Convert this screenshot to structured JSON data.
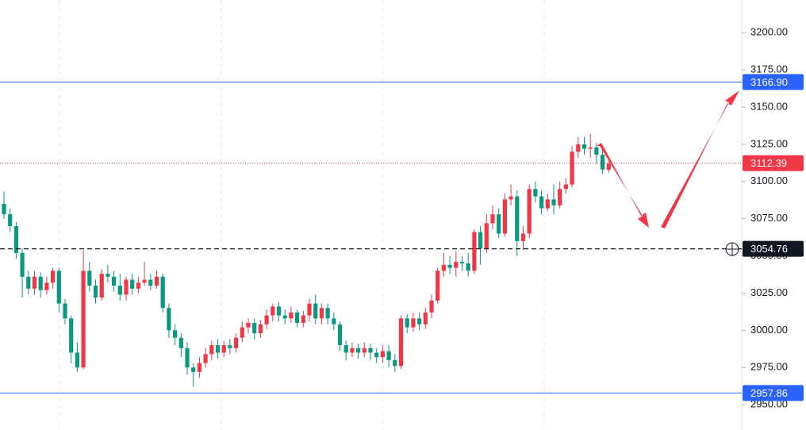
{
  "chart_data": {
    "type": "candlestick",
    "open": [
      3085,
      3078,
      3070,
      3052,
      3036,
      3028,
      3036,
      3027,
      3032,
      3040,
      3018,
      3008,
      2985,
      2975,
      3040,
      3030,
      3022,
      3038,
      3036,
      3030,
      3024,
      3034,
      3028,
      3032,
      3034,
      3030,
      3036,
      3015,
      3000,
      2995,
      2988,
      2975,
      2972,
      2978,
      2984,
      2990,
      2985,
      2990,
      2988,
      2995,
      3002,
      3005,
      2998,
      3004,
      3010,
      3016,
      3010,
      3008,
      3012,
      3005,
      3010,
      3018,
      3008,
      3015,
      3008,
      3004,
      2990,
      2985,
      2988,
      2985,
      2988,
      2985,
      2982,
      2986,
      2980,
      2976,
      3008,
      3002,
      3008,
      3004,
      3012,
      3020,
      3040,
      3044,
      3042,
      3046,
      3045,
      3040,
      3066,
      3055,
      3072,
      3078,
      3065,
      3088,
      3090,
      3060,
      3065,
      3095,
      3090,
      3082,
      3088,
      3084,
      3095,
      3098,
      3120,
      3125,
      3122,
      3123,
      3118,
      3108
    ],
    "high": [
      3093,
      3082,
      3073,
      3055,
      3040,
      3040,
      3039,
      3036,
      3042,
      3042,
      3021,
      3010,
      2992,
      3054,
      3046,
      3034,
      3041,
      3044,
      3040,
      3038,
      3036,
      3038,
      3036,
      3046,
      3038,
      3040,
      3038,
      3018,
      3004,
      2998,
      2992,
      2978,
      2982,
      2988,
      2993,
      2994,
      2993,
      2994,
      2998,
      3006,
      3008,
      3008,
      3007,
      3014,
      3018,
      3019,
      3014,
      3016,
      3014,
      3013,
      3021,
      3024,
      3018,
      3018,
      3012,
      3006,
      2993,
      2992,
      2991,
      2992,
      2991,
      2988,
      2990,
      2990,
      2984,
      3010,
      3011,
      3012,
      3012,
      3015,
      3024,
      3042,
      3052,
      3050,
      3053,
      3050,
      3052,
      3068,
      3070,
      3078,
      3084,
      3082,
      3092,
      3098,
      3094,
      3070,
      3098,
      3100,
      3094,
      3092,
      3098,
      3100,
      3102,
      3124,
      3130,
      3130,
      3132,
      3126,
      3122,
      3114
    ],
    "low": [
      3075,
      3066,
      3048,
      3022,
      3024,
      3024,
      3022,
      3024,
      3028,
      3012,
      3004,
      2978,
      2972,
      2974,
      3026,
      3018,
      3020,
      3032,
      3026,
      3020,
      3020,
      3024,
      3025,
      3030,
      3027,
      3028,
      3012,
      2995,
      2990,
      2982,
      2970,
      2962,
      2968,
      2975,
      2980,
      2981,
      2982,
      2984,
      2985,
      2992,
      2998,
      2994,
      2995,
      3001,
      3006,
      3006,
      3004,
      3005,
      3002,
      3002,
      3006,
      3004,
      3004,
      3004,
      3000,
      2986,
      2980,
      2982,
      2981,
      2982,
      2980,
      2978,
      2978,
      2975,
      2972,
      2974,
      2998,
      2999,
      3000,
      3001,
      3008,
      3018,
      3036,
      3038,
      3036,
      3040,
      3036,
      3038,
      3044,
      3052,
      3068,
      3062,
      3063,
      3084,
      3050,
      3054,
      3062,
      3086,
      3078,
      3080,
      3078,
      3082,
      3092,
      3096,
      3116,
      3118,
      3116,
      3112,
      3105,
      3106
    ],
    "close": [
      3078,
      3070,
      3052,
      3036,
      3028,
      3036,
      3027,
      3032,
      3040,
      3018,
      3008,
      2985,
      2975,
      3040,
      3030,
      3022,
      3038,
      3036,
      3030,
      3024,
      3034,
      3028,
      3032,
      3034,
      3030,
      3036,
      3015,
      3000,
      2995,
      2988,
      2975,
      2972,
      2978,
      2984,
      2990,
      2985,
      2990,
      2988,
      2995,
      3002,
      3005,
      2998,
      3004,
      3010,
      3016,
      3010,
      3008,
      3012,
      3005,
      3010,
      3018,
      3008,
      3015,
      3008,
      3004,
      2990,
      2985,
      2988,
      2985,
      2988,
      2985,
      2982,
      2986,
      2980,
      2976,
      3008,
      3002,
      3008,
      3004,
      3012,
      3020,
      3040,
      3044,
      3042,
      3046,
      3045,
      3040,
      3066,
      3055,
      3072,
      3078,
      3065,
      3088,
      3090,
      3060,
      3065,
      3095,
      3090,
      3082,
      3088,
      3084,
      3095,
      3098,
      3120,
      3125,
      3122,
      3123,
      3118,
      3108,
      3112
    ],
    "up_color": "#f23645",
    "down_color": "#089981",
    "ylim": [
      2933,
      3222
    ],
    "yticks": [
      {
        "value": 2950,
        "label": "2950.00"
      },
      {
        "value": 2975,
        "label": "2975.00"
      },
      {
        "value": 3000,
        "label": "3000.00"
      },
      {
        "value": 3025,
        "label": "3025.00"
      },
      {
        "value": 3050,
        "label": "3050.00"
      },
      {
        "value": 3075,
        "label": "3075.00"
      },
      {
        "value": 3100,
        "label": "3100.00"
      },
      {
        "value": 3125,
        "label": "3125.00"
      },
      {
        "value": 3150,
        "label": "3150.00"
      },
      {
        "value": 3175,
        "label": "3175.00"
      },
      {
        "value": 3200,
        "label": "3200.00"
      }
    ],
    "price_lines": [
      {
        "value": 3166.9,
        "label": "3166.90",
        "color": "#2962ff",
        "style": "solid"
      },
      {
        "value": 3112.39,
        "label": "3112.39",
        "color": "#f23645",
        "style": "dotted"
      },
      {
        "value": 3054.76,
        "label": "3054.76",
        "color": "#131722",
        "style": "dashed"
      },
      {
        "value": 2957.86,
        "label": "2957.86",
        "color": "#2962ff",
        "style": "solid"
      }
    ]
  }
}
